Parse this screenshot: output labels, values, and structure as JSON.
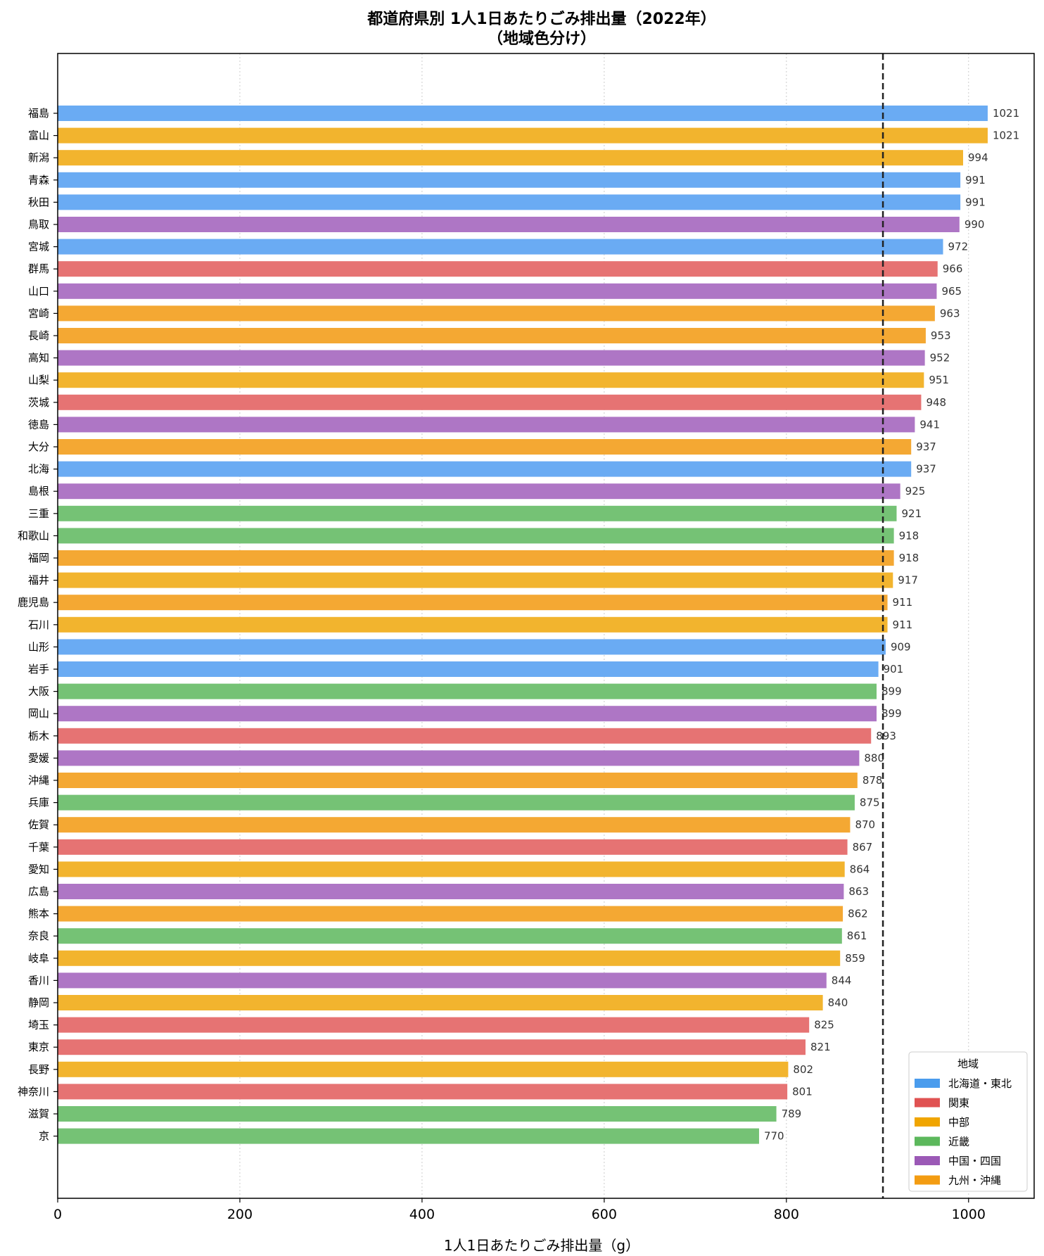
{
  "chart_data": {
    "type": "bar",
    "orientation": "horizontal",
    "title": "都道府県別 1人1日あたりごみ排出量（2022年）",
    "subtitle": "（地域色分け）",
    "xlabel": "1人1日あたりごみ排出量（g）",
    "ylabel": "",
    "xlim": [
      0,
      1072
    ],
    "xticks": [
      0,
      200,
      400,
      600,
      800,
      1000
    ],
    "grid": "vertical-dotted",
    "reference_line": {
      "value": 906,
      "style": "dashed"
    },
    "legend": {
      "title": "地域",
      "placement": "lower-right",
      "entries": [
        {
          "name": "北海道・東北",
          "color": "#4a9ced"
        },
        {
          "name": "関東",
          "color": "#e05252"
        },
        {
          "name": "中部",
          "color": "#f0a500"
        },
        {
          "name": "近畿",
          "color": "#5cb85c"
        },
        {
          "name": "中国・四国",
          "color": "#9b59b6"
        },
        {
          "name": "九州・沖縄",
          "color": "#f39c12"
        }
      ]
    },
    "region_colors": {
      "北海道・東北": "#6aabf3",
      "関東": "#e67373",
      "中部": "#f2b42e",
      "近畿": "#75c275",
      "中国・四国": "#ae76c5",
      "九州・沖縄": "#f4a833"
    },
    "bars": [
      {
        "label": "福島",
        "value": 1021,
        "region": "北海道・東北"
      },
      {
        "label": "富山",
        "value": 1021,
        "region": "中部"
      },
      {
        "label": "新潟",
        "value": 994,
        "region": "中部"
      },
      {
        "label": "青森",
        "value": 991,
        "region": "北海道・東北"
      },
      {
        "label": "秋田",
        "value": 991,
        "region": "北海道・東北"
      },
      {
        "label": "鳥取",
        "value": 990,
        "region": "中国・四国"
      },
      {
        "label": "宮城",
        "value": 972,
        "region": "北海道・東北"
      },
      {
        "label": "群馬",
        "value": 966,
        "region": "関東"
      },
      {
        "label": "山口",
        "value": 965,
        "region": "中国・四国"
      },
      {
        "label": "宮崎",
        "value": 963,
        "region": "九州・沖縄"
      },
      {
        "label": "長崎",
        "value": 953,
        "region": "九州・沖縄"
      },
      {
        "label": "高知",
        "value": 952,
        "region": "中国・四国"
      },
      {
        "label": "山梨",
        "value": 951,
        "region": "中部"
      },
      {
        "label": "茨城",
        "value": 948,
        "region": "関東"
      },
      {
        "label": "徳島",
        "value": 941,
        "region": "中国・四国"
      },
      {
        "label": "大分",
        "value": 937,
        "region": "九州・沖縄"
      },
      {
        "label": "北海",
        "value": 937,
        "region": "北海道・東北"
      },
      {
        "label": "島根",
        "value": 925,
        "region": "中国・四国"
      },
      {
        "label": "三重",
        "value": 921,
        "region": "近畿"
      },
      {
        "label": "和歌山",
        "value": 918,
        "region": "近畿"
      },
      {
        "label": "福岡",
        "value": 918,
        "region": "九州・沖縄"
      },
      {
        "label": "福井",
        "value": 917,
        "region": "中部"
      },
      {
        "label": "鹿児島",
        "value": 911,
        "region": "九州・沖縄"
      },
      {
        "label": "石川",
        "value": 911,
        "region": "中部"
      },
      {
        "label": "山形",
        "value": 909,
        "region": "北海道・東北"
      },
      {
        "label": "岩手",
        "value": 901,
        "region": "北海道・東北"
      },
      {
        "label": "大阪",
        "value": 899,
        "region": "近畿"
      },
      {
        "label": "岡山",
        "value": 899,
        "region": "中国・四国"
      },
      {
        "label": "栃木",
        "value": 893,
        "region": "関東"
      },
      {
        "label": "愛媛",
        "value": 880,
        "region": "中国・四国"
      },
      {
        "label": "沖縄",
        "value": 878,
        "region": "九州・沖縄"
      },
      {
        "label": "兵庫",
        "value": 875,
        "region": "近畿"
      },
      {
        "label": "佐賀",
        "value": 870,
        "region": "九州・沖縄"
      },
      {
        "label": "千葉",
        "value": 867,
        "region": "関東"
      },
      {
        "label": "愛知",
        "value": 864,
        "region": "中部"
      },
      {
        "label": "広島",
        "value": 863,
        "region": "中国・四国"
      },
      {
        "label": "熊本",
        "value": 862,
        "region": "九州・沖縄"
      },
      {
        "label": "奈良",
        "value": 861,
        "region": "近畿"
      },
      {
        "label": "岐阜",
        "value": 859,
        "region": "中部"
      },
      {
        "label": "香川",
        "value": 844,
        "region": "中国・四国"
      },
      {
        "label": "静岡",
        "value": 840,
        "region": "中部"
      },
      {
        "label": "埼玉",
        "value": 825,
        "region": "関東"
      },
      {
        "label": "東京",
        "value": 821,
        "region": "関東"
      },
      {
        "label": "長野",
        "value": 802,
        "region": "中部"
      },
      {
        "label": "神奈川",
        "value": 801,
        "region": "関東"
      },
      {
        "label": "滋賀",
        "value": 789,
        "region": "近畿"
      },
      {
        "label": "京",
        "value": 770,
        "region": "近畿"
      }
    ]
  }
}
